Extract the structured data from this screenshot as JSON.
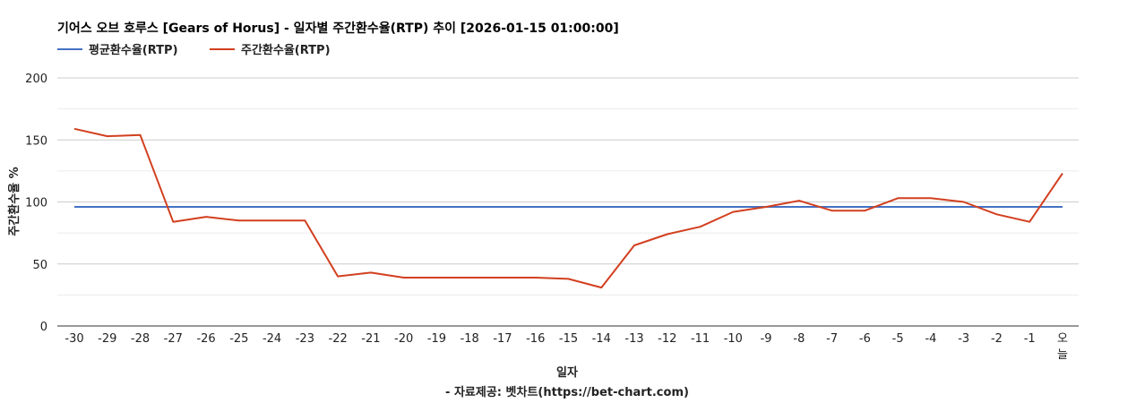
{
  "chart_data": {
    "type": "line",
    "title": "기어스 오브 호루스 [Gears of Horus] - 일자별 주간환수율(RTP) 추이 [2026-01-15 01:00:00]",
    "xlabel": "일자",
    "ylabel": "주간환수율 %",
    "source": "- 자료제공: 벳차트(https://bet-chart.com)",
    "categories": [
      "-30",
      "-29",
      "-28",
      "-27",
      "-26",
      "-25",
      "-24",
      "-23",
      "-22",
      "-21",
      "-20",
      "-19",
      "-18",
      "-17",
      "-16",
      "-15",
      "-14",
      "-13",
      "-12",
      "-11",
      "-10",
      "-9",
      "-8",
      "-7",
      "-6",
      "-5",
      "-4",
      "-3",
      "-2",
      "-1",
      "오늘"
    ],
    "ylim": [
      0,
      200
    ],
    "yticks": [
      "0",
      "50",
      "100",
      "150",
      "200"
    ],
    "grid": true,
    "legend_position": "top-left",
    "series": [
      {
        "name": "평균환수율(RTP)",
        "color": "#4472c4",
        "values": [
          96,
          96,
          96,
          96,
          96,
          96,
          96,
          96,
          96,
          96,
          96,
          96,
          96,
          96,
          96,
          96,
          96,
          96,
          96,
          96,
          96,
          96,
          96,
          96,
          96,
          96,
          96,
          96,
          96,
          96,
          96
        ]
      },
      {
        "name": "주간환수율(RTP)",
        "color": "#d23f1f",
        "values": [
          159,
          153,
          154,
          84,
          88,
          85,
          85,
          85,
          40,
          43,
          39,
          39,
          39,
          39,
          39,
          38,
          31,
          65,
          74,
          80,
          92,
          96,
          101,
          93,
          93,
          103,
          103,
          100,
          90,
          84,
          123
        ]
      }
    ]
  }
}
